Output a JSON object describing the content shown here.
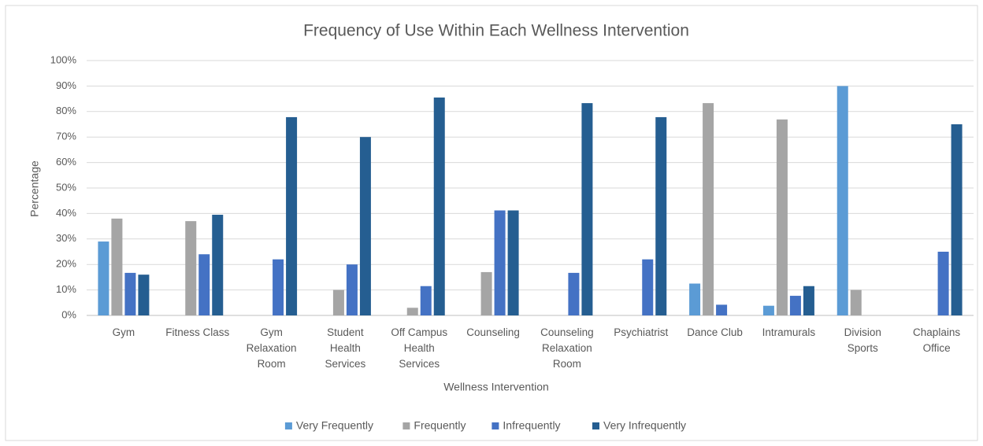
{
  "chart_data": {
    "type": "bar",
    "title": "Frequency of Use Within Each Wellness Intervention",
    "x_label": "Wellness Intervention",
    "y_label": "Percentage",
    "categories": [
      "Gym",
      "Fitness Class",
      "Gym Relaxation Room",
      "Student Health Services",
      "Off Campus Health Services",
      "Counseling",
      "Counseling Relaxation Room",
      "Psychiatrist",
      "Dance Club",
      "Intramurals",
      "Division Sports",
      "Chaplains Office"
    ],
    "series": [
      {
        "name": "Very Frequently",
        "color": "#5b9bd5",
        "values": [
          29,
          0,
          0,
          0,
          0,
          0,
          0,
          0,
          12.5,
          3.8,
          90,
          0
        ]
      },
      {
        "name": "Frequently",
        "color": "#a5a5a5",
        "values": [
          38,
          37,
          0,
          10,
          3,
          17,
          0,
          0,
          83.3,
          76.9,
          10,
          0
        ]
      },
      {
        "name": "Infrequently",
        "color": "#4472c4",
        "values": [
          16.7,
          24,
          22,
          20,
          11.5,
          41.2,
          16.7,
          22,
          4.2,
          7.7,
          0,
          25
        ]
      },
      {
        "name": "Very Infrequently",
        "color": "#255e91",
        "values": [
          16,
          39.5,
          77.8,
          70,
          85.5,
          41.2,
          83.3,
          77.8,
          0,
          11.5,
          0,
          75
        ]
      }
    ],
    "ylim": [
      0,
      100
    ],
    "yticks": [
      {
        "value": 0,
        "label": "0%"
      },
      {
        "value": 10,
        "label": "10%"
      },
      {
        "value": 20,
        "label": "20%"
      },
      {
        "value": 30,
        "label": "30%"
      },
      {
        "value": 40,
        "label": "40%"
      },
      {
        "value": 50,
        "label": "50%"
      },
      {
        "value": 60,
        "label": "60%"
      },
      {
        "value": 70,
        "label": "70%"
      },
      {
        "value": 80,
        "label": "80%"
      },
      {
        "value": 90,
        "label": "90%"
      },
      {
        "value": 100,
        "label": "100%"
      }
    ],
    "grid": true,
    "legend": "bottom"
  }
}
